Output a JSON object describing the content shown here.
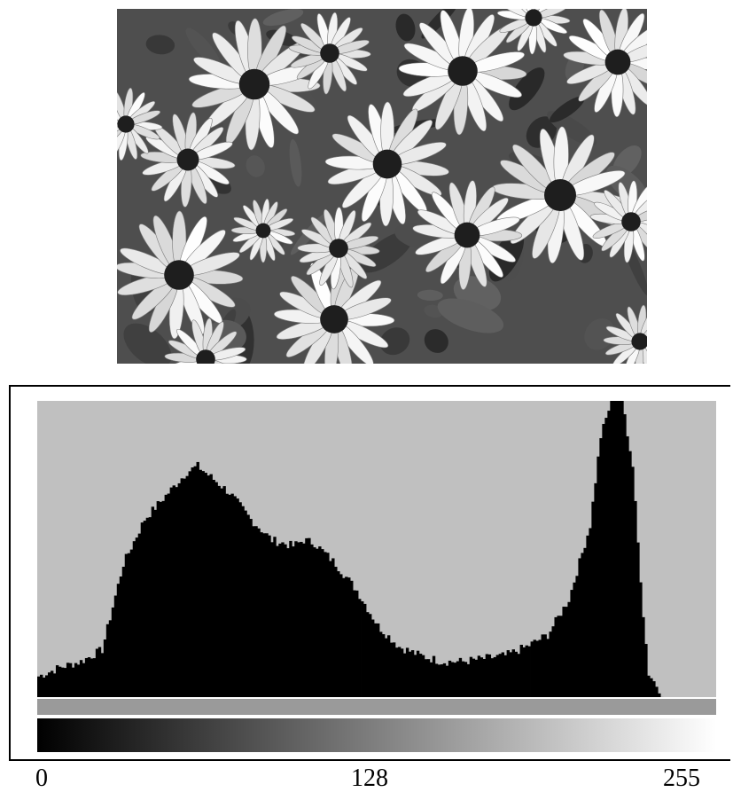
{
  "photo": {
    "subject_icon": "daisy-field-grayscale"
  },
  "colors": {
    "background": "#ffffff",
    "plot_background": "#c0c0c0",
    "bars": "#000000",
    "frame": "#000000"
  },
  "chart_data": {
    "type": "bar",
    "title": "",
    "xlabel": "",
    "ylabel": "",
    "xlim": [
      0,
      255
    ],
    "ylim": [
      0,
      1
    ],
    "grid": false,
    "legend": "none",
    "intensity_gradient": true,
    "tick_labels": [
      "0",
      "128",
      "255"
    ],
    "x": [
      0,
      8,
      16,
      24,
      32,
      40,
      48,
      56,
      60,
      64,
      72,
      80,
      88,
      96,
      100,
      104,
      112,
      120,
      128,
      136,
      144,
      152,
      160,
      168,
      176,
      184,
      192,
      200,
      208,
      212,
      216,
      220,
      224,
      226,
      228,
      230,
      236,
      255
    ],
    "values": [
      0.07,
      0.1,
      0.12,
      0.16,
      0.45,
      0.6,
      0.68,
      0.76,
      0.78,
      0.75,
      0.69,
      0.6,
      0.53,
      0.51,
      0.53,
      0.52,
      0.45,
      0.36,
      0.24,
      0.17,
      0.14,
      0.12,
      0.12,
      0.13,
      0.14,
      0.17,
      0.21,
      0.33,
      0.58,
      0.88,
      1.0,
      1.0,
      0.78,
      0.52,
      0.28,
      0.08,
      0.0,
      0.0
    ]
  }
}
